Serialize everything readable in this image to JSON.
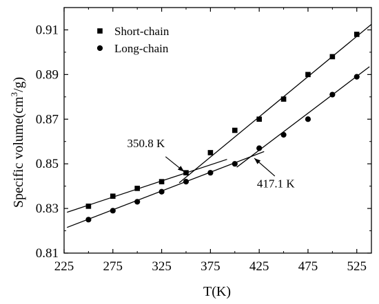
{
  "chart_data": {
    "type": "scatter",
    "xlabel": "T(K)",
    "ylabel_main": "Specific volume(cm",
    "ylabel_sup": "3",
    "ylabel_tail": "/g)",
    "xlim": [
      225,
      540
    ],
    "ylim": [
      0.81,
      0.92
    ],
    "xticks": [
      225,
      275,
      325,
      375,
      425,
      475,
      525
    ],
    "xtick_labels": [
      "225",
      "275",
      "325",
      "375",
      "425",
      "475",
      "525"
    ],
    "yticks": [
      0.81,
      0.83,
      0.85,
      0.87,
      0.89,
      0.91
    ],
    "ytick_labels": [
      "0.81",
      "0.83",
      "0.85",
      "0.87",
      "0.89",
      "0.91"
    ],
    "grid": false,
    "legend_position": "top-left",
    "series": [
      {
        "name": "Short-chain",
        "marker": "square",
        "x": [
          250,
          275,
          300,
          325,
          350,
          375,
          400,
          425,
          450,
          475,
          500,
          525
        ],
        "y": [
          0.831,
          0.8355,
          0.839,
          0.842,
          0.846,
          0.855,
          0.865,
          0.87,
          0.879,
          0.89,
          0.898,
          0.908
        ],
        "fits": [
          {
            "x": [
              228,
              392
            ],
            "y": [
              0.8283,
              0.852
            ]
          },
          {
            "x": [
              343,
              540
            ],
            "y": [
              0.8415,
              0.9125
            ]
          }
        ]
      },
      {
        "name": "Long-chain",
        "marker": "circle",
        "x": [
          250,
          275,
          300,
          325,
          350,
          375,
          400,
          425,
          450,
          475,
          500,
          525
        ],
        "y": [
          0.825,
          0.829,
          0.833,
          0.8375,
          0.842,
          0.846,
          0.85,
          0.857,
          0.863,
          0.87,
          0.881,
          0.889
        ],
        "fits": [
          {
            "x": [
              228,
              430
            ],
            "y": [
              0.8215,
              0.8555
            ]
          },
          {
            "x": [
              402,
              538
            ],
            "y": [
              0.8485,
              0.8935
            ]
          }
        ]
      }
    ],
    "annotations": [
      {
        "text": "350.8 K",
        "text_x": 309,
        "text_y": 0.8575,
        "arrow_from": [
          329,
          0.8532
        ],
        "arrow_to": [
          348,
          0.8465
        ]
      },
      {
        "text": "417.1 K",
        "text_x": 442,
        "text_y": 0.8395,
        "arrow_from": [
          441,
          0.8445
        ],
        "arrow_to": [
          420,
          0.8525
        ]
      }
    ]
  }
}
